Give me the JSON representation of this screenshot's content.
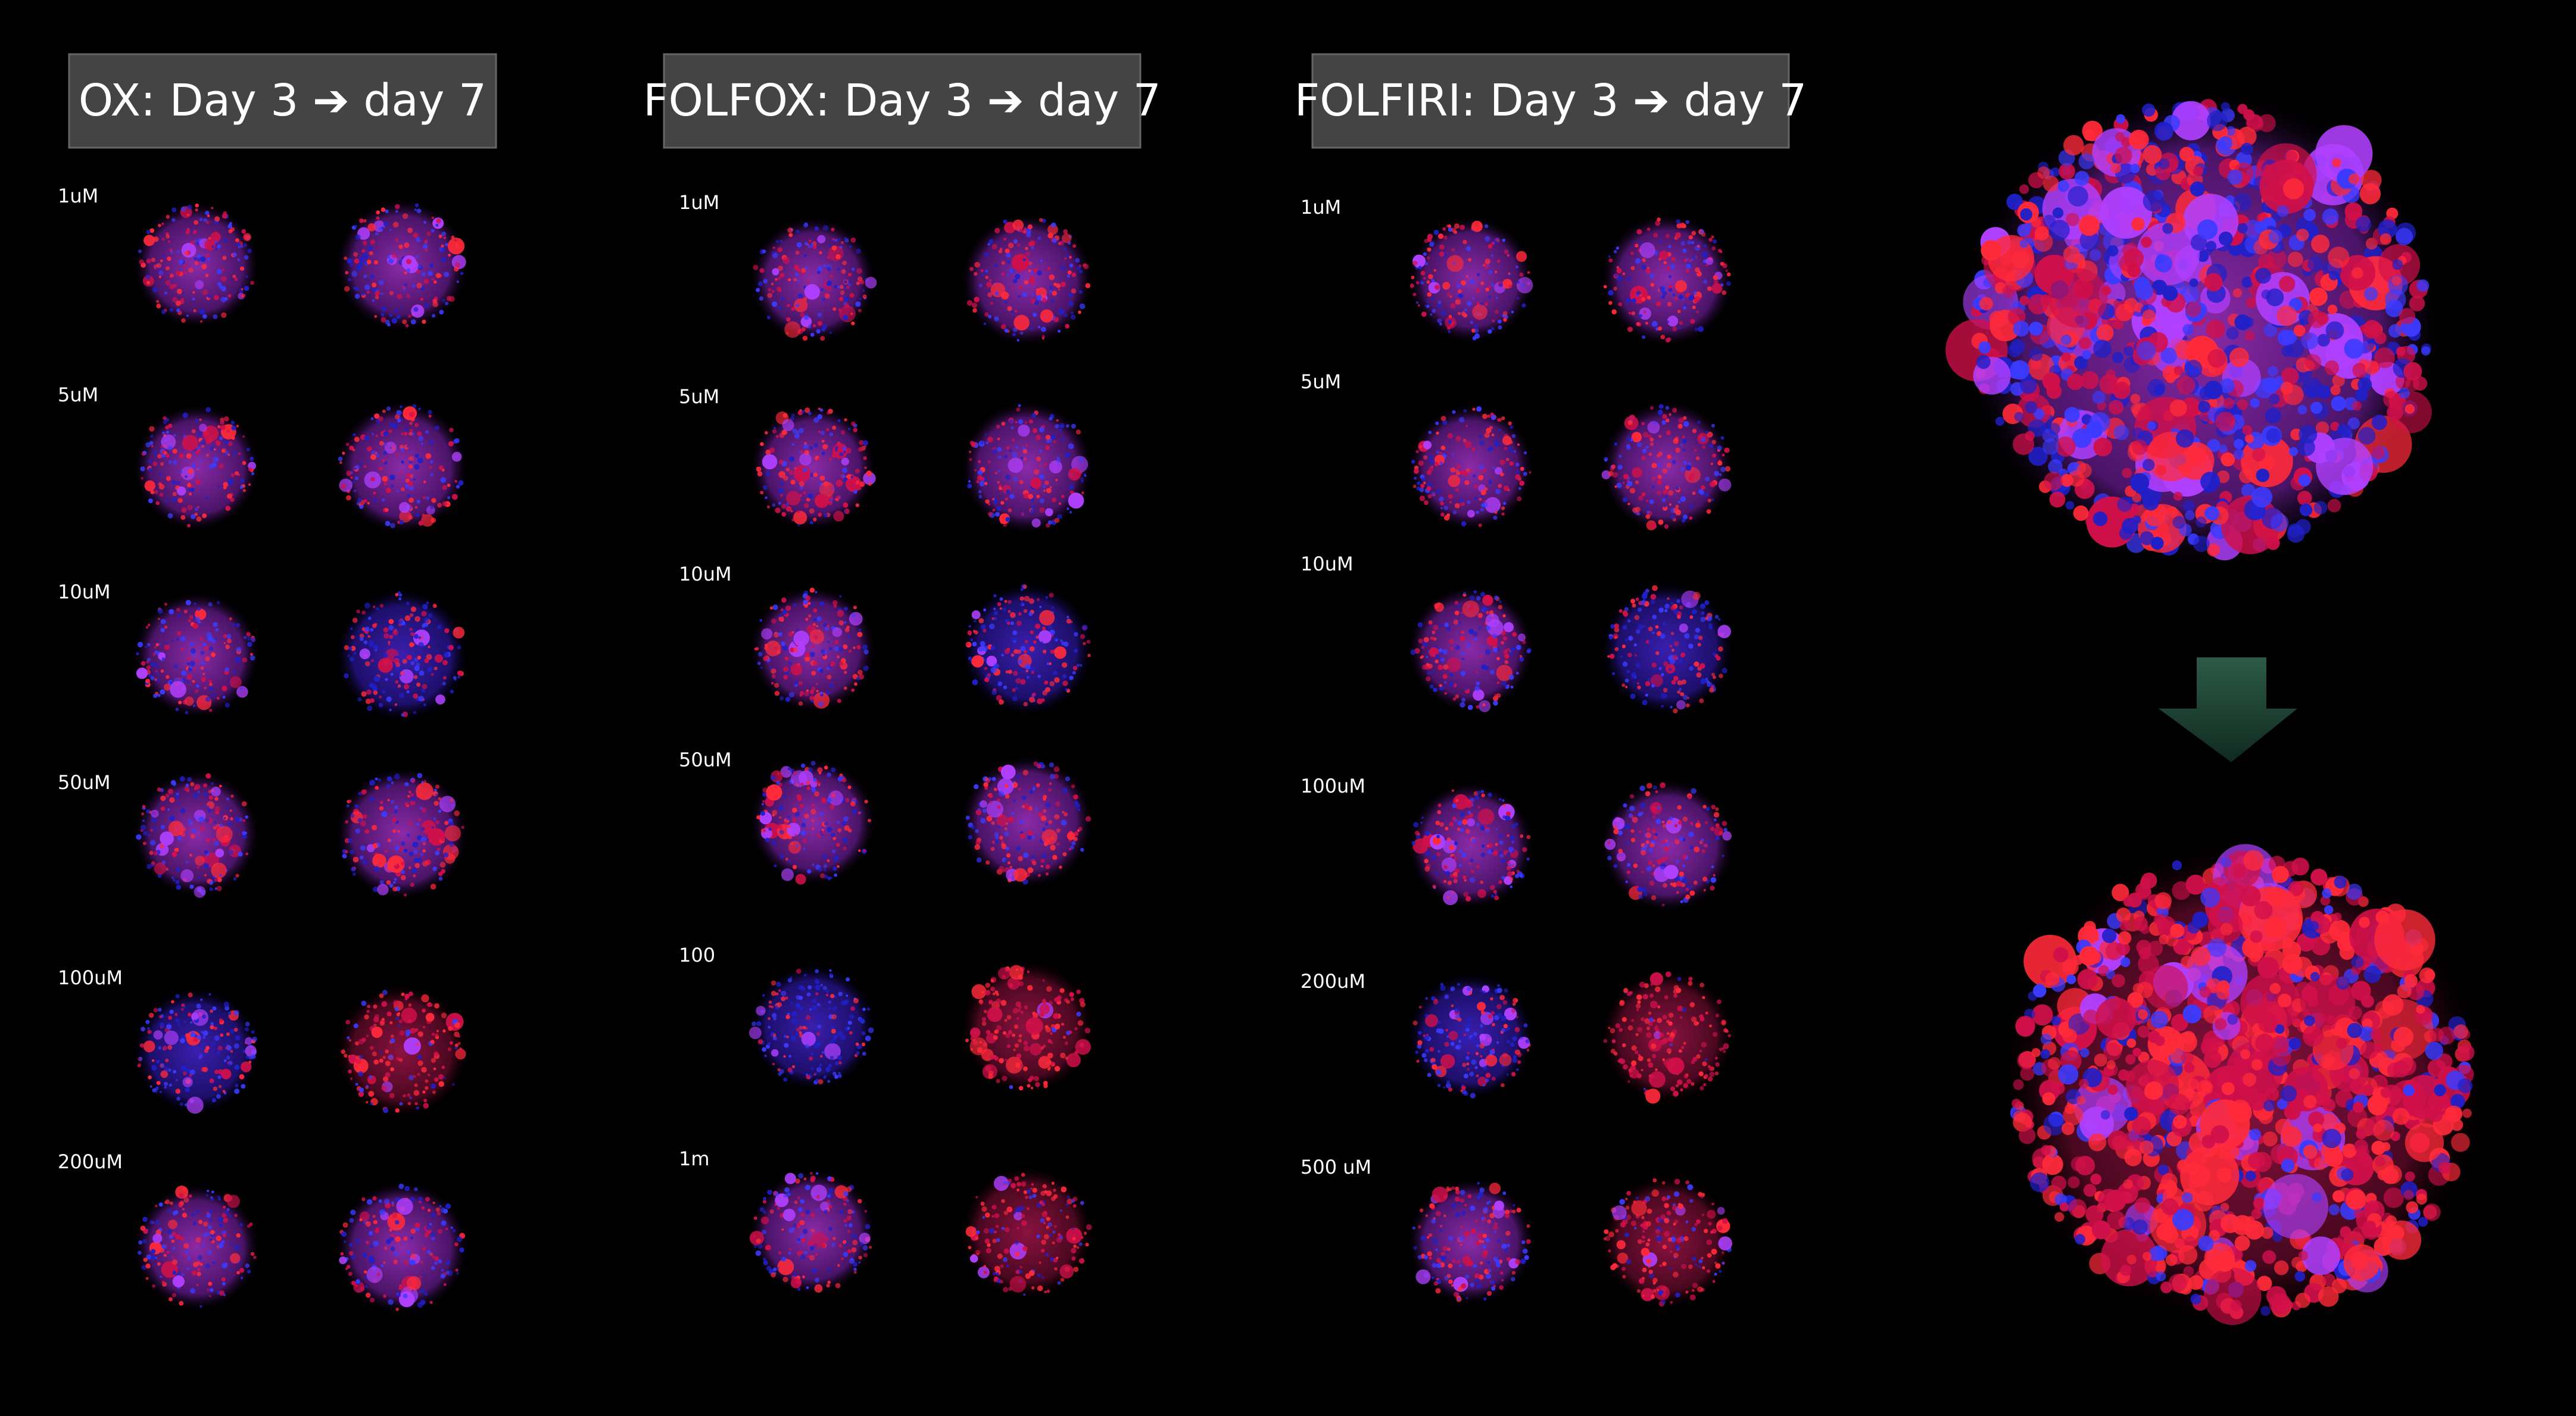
{
  "panels": [
    {
      "title": "OX:  Day 3 ➔ day 7",
      "labels": [
        "1uM",
        "5uM",
        "10uM",
        "50uM",
        "100uM",
        "200uM"
      ]
    },
    {
      "title": "FOLFOX:  Day 3 ➔ day 7",
      "labels": [
        "1uM",
        "5uM",
        "10uM",
        "50uM",
        "100",
        "1m"
      ]
    },
    {
      "title": "FOLFIRI:  Day 3 ➔ day 7",
      "labels": [
        "1uM",
        "5uM",
        "10uM",
        "100uM",
        "200uM",
        "500 uM"
      ]
    }
  ]
}
